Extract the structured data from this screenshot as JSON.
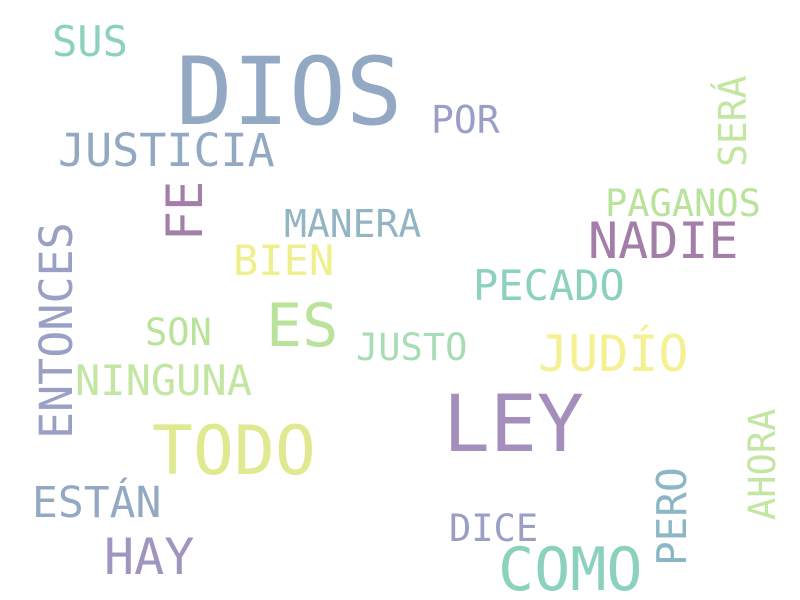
{
  "words": [
    {
      "text": "DIOS",
      "color": "#93a9c3"
    },
    {
      "text": "LEY",
      "color": "#a48fbc"
    },
    {
      "text": "TODO",
      "color": "#dfe990"
    },
    {
      "text": "COMO",
      "color": "#8bd1bd"
    },
    {
      "text": "ES",
      "color": "#b9e39a"
    },
    {
      "text": "JUSTICIA",
      "color": "#93a9c3"
    },
    {
      "text": "ENTONCES",
      "color": "#9aa0c5"
    },
    {
      "text": "NADIE",
      "color": "#a37ea8"
    },
    {
      "text": "JUDÍO",
      "color": "#f5f091"
    },
    {
      "text": "HAY",
      "color": "#a095be"
    },
    {
      "text": "FE",
      "color": "#a37ea8"
    },
    {
      "text": "PECADO",
      "color": "#8bd1bd"
    },
    {
      "text": "NINGUNA",
      "color": "#c4e6a3"
    },
    {
      "text": "ESTÁN",
      "color": "#93a9c3"
    },
    {
      "text": "BIEN",
      "color": "#eff08c"
    },
    {
      "text": "MANERA",
      "color": "#93b5c3"
    },
    {
      "text": "PAGANOS",
      "color": "#b9e39a"
    },
    {
      "text": "PERO",
      "color": "#8bb6c5"
    },
    {
      "text": "AHORA",
      "color": "#c4e6a3"
    },
    {
      "text": "SUS",
      "color": "#8bd1bd"
    },
    {
      "text": "POR",
      "color": "#9aa0c5"
    },
    {
      "text": "SERÁ",
      "color": "#c4e6a3"
    },
    {
      "text": "JUSTO",
      "color": "#a8dcb5"
    },
    {
      "text": "SON",
      "color": "#b9e39a"
    },
    {
      "text": "DICE",
      "color": "#9aa0c5"
    }
  ]
}
